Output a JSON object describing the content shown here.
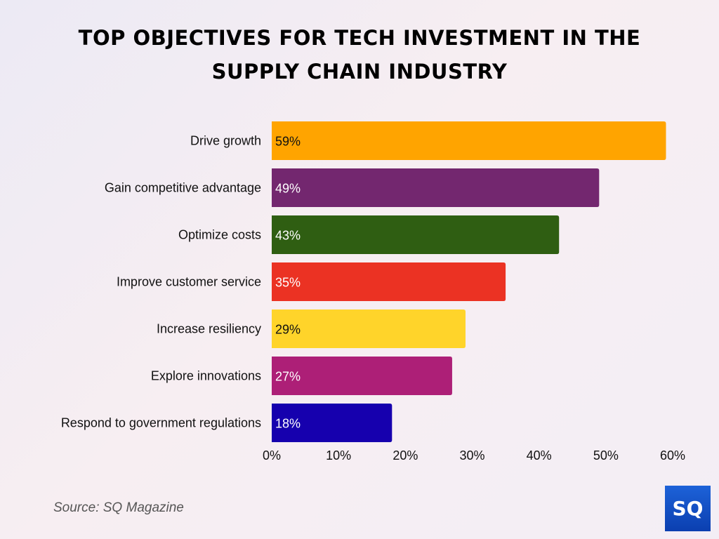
{
  "chart_data": {
    "type": "bar",
    "orientation": "horizontal",
    "title": "TOP OBJECTIVES FOR TECH INVESTMENT IN THE SUPPLY CHAIN INDUSTRY",
    "title_lines": [
      "TOP OBJECTIVES FOR TECH INVESTMENT IN THE",
      "SUPPLY CHAIN INDUSTRY"
    ],
    "categories": [
      "Drive growth",
      "Gain competitive advantage",
      "Optimize costs",
      "Improve customer service",
      "Increase resiliency",
      "Explore innovations",
      "Respond to government regulations"
    ],
    "values": [
      59,
      49,
      43,
      35,
      29,
      27,
      18
    ],
    "data_labels": [
      "59%",
      "49%",
      "43%",
      "35%",
      "29%",
      "27%",
      "18%"
    ],
    "colors": [
      "#ffa400",
      "#73276f",
      "#2f5e12",
      "#eb3223",
      "#ffd42a",
      "#ad1f77",
      "#1600ae"
    ],
    "label_colors": [
      "#111111",
      "#ffffff",
      "#ffffff",
      "#ffffff",
      "#111111",
      "#ffffff",
      "#ffffff"
    ],
    "xlim": [
      0,
      60
    ],
    "xticks": [
      0,
      10,
      20,
      30,
      40,
      50,
      60
    ],
    "xtick_labels": [
      "0%",
      "10%",
      "20%",
      "30%",
      "40%",
      "50%",
      "60%"
    ],
    "grid": false,
    "legend": "none"
  },
  "source": "Source: SQ Magazine",
  "logo_text": "SQ"
}
